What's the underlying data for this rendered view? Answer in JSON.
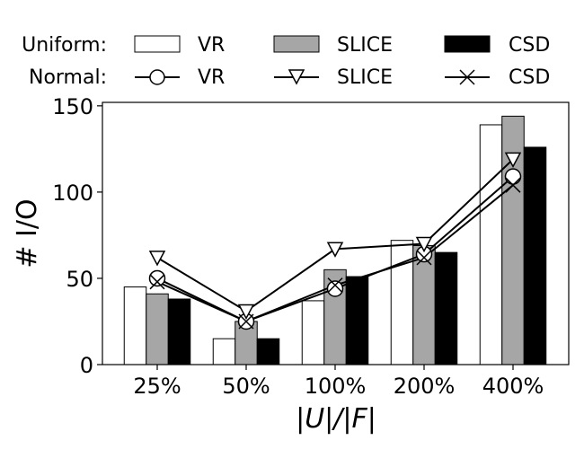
{
  "chart_data": {
    "type": "bar",
    "categories": [
      "25%",
      "50%",
      "100%",
      "200%",
      "400%"
    ],
    "xlabel": "|U|/|F|",
    "ylabel": "# I/O",
    "ylim": [
      0,
      152
    ],
    "yticks": [
      0,
      50,
      100,
      150
    ],
    "bar_series": [
      {
        "name": "VR",
        "group": "Uniform",
        "color": "#ffffff",
        "values": [
          45,
          15,
          37,
          72,
          139
        ]
      },
      {
        "name": "SLICE",
        "group": "Uniform",
        "color": "#a6a6a6",
        "values": [
          41,
          25,
          55,
          69,
          144
        ]
      },
      {
        "name": "CSD",
        "group": "Uniform",
        "color": "#000000",
        "values": [
          38,
          15,
          51,
          65,
          126
        ]
      }
    ],
    "line_series": [
      {
        "name": "VR",
        "group": "Normal",
        "marker": "circle",
        "values": [
          50,
          25,
          44,
          64,
          109
        ]
      },
      {
        "name": "SLICE",
        "group": "Normal",
        "marker": "triangle-down",
        "values": [
          62,
          31,
          67,
          70,
          119
        ]
      },
      {
        "name": "CSD",
        "group": "Normal",
        "marker": "x",
        "values": [
          48,
          25,
          46,
          62,
          104
        ]
      }
    ]
  },
  "legend": {
    "uniform_label": "Uniform:",
    "normal_label": "Normal:",
    "uniform_items": [
      "VR",
      "SLICE",
      "CSD"
    ],
    "normal_items": [
      "VR",
      "SLICE",
      "CSD"
    ]
  }
}
